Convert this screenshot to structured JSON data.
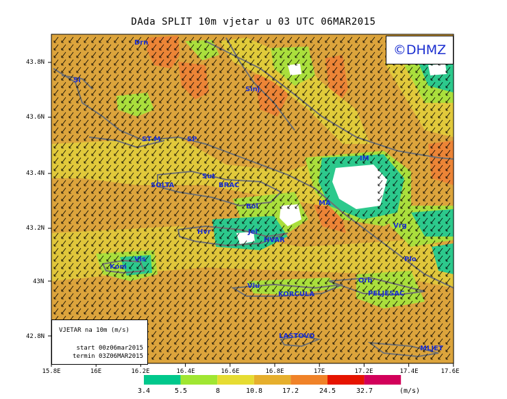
{
  "title": "DAda SPLIT 10m vjetar u 03 UTC 06MAR2015",
  "logo": "©DHMZ",
  "info": {
    "title": "VJETAR na 10m (m/s)",
    "start": "start 00z06mar2015",
    "end": "termin 03Z06MAR2015"
  },
  "lat_labels": [
    "43.8N",
    "43.6N",
    "43.4N",
    "43.2N",
    "43N",
    "42.8N"
  ],
  "lon_labels": [
    "15.8E",
    "16E",
    "16.2E",
    "16.4E",
    "16.6E",
    "16.8E",
    "17E",
    "17.2E",
    "17.4E",
    "17.6E"
  ],
  "places": {
    "drn": "Drn",
    "si": "Si",
    "sinj": "Sinj",
    "stm": "ST M",
    "sp": "SP",
    "im": "IM",
    "solta": "SOLTA",
    "sut": "Sut",
    "brac": "BRAC",
    "bol": "Bol",
    "ma": "MA",
    "hvr": "Hvr",
    "jel": "Jel",
    "hvar": "HVAR",
    "vrg": "Vrg",
    "plo": "Plo",
    "vis": "Vis",
    "kom": "Kom",
    "vlu": "Vlu",
    "orb": "Orb",
    "korcula": "KORCULA",
    "peljesac": "PELJESAC",
    "lastovo": "LASTOVO",
    "mljet": "MLJET"
  },
  "legend": {
    "unit": "(m/s)",
    "ticks": [
      "3.4",
      "5.5",
      "8",
      "10.8",
      "17.2",
      "24.5",
      "32.7"
    ],
    "colors": [
      "#00c88c",
      "#a0e632",
      "#e6dc32",
      "#e6af2d",
      "#f08228",
      "#e61400",
      "#d2005a"
    ]
  },
  "colors": {
    "field_main": "#dca43c",
    "field_orange": "#ec8436",
    "field_yellow": "#e2d83a",
    "field_green": "#aadf3c",
    "field_teal": "#2cc98c",
    "coast": "#707070",
    "label": "#1c2fd0"
  },
  "wind_direction": "from NE (arrows pointing SW), calm zones near Makarska and Jelsa"
}
